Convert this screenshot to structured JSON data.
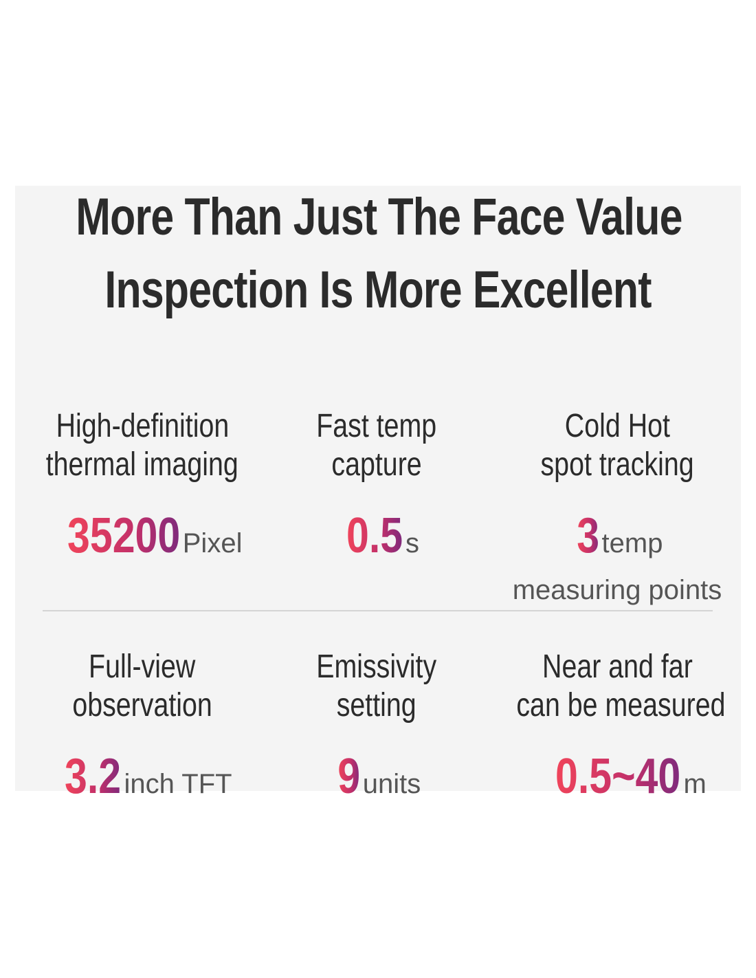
{
  "header": {
    "title_lines": [
      "More Than Just The Face Value",
      "Inspection Is More Excellent"
    ]
  },
  "features": [
    {
      "label_lines": [
        "High-definition",
        "thermal imaging"
      ],
      "value": "35200",
      "unit": "Pixel"
    },
    {
      "label_lines": [
        "Fast temp",
        "capture"
      ],
      "value": "0.5",
      "unit": "s"
    },
    {
      "label_lines": [
        "Cold Hot",
        "spot tracking"
      ],
      "value": "3",
      "unit": "temp",
      "extra": "measuring points"
    },
    {
      "label_lines": [
        "Full-view",
        "observation"
      ],
      "value": "3.2",
      "unit": "inch TFT"
    },
    {
      "label_lines": [
        "Emissivity",
        "setting"
      ],
      "value": "9",
      "unit": "units"
    },
    {
      "label_lines": [
        "Near and far",
        "can be measured"
      ],
      "value": "0.5~40",
      "unit": "m"
    }
  ]
}
